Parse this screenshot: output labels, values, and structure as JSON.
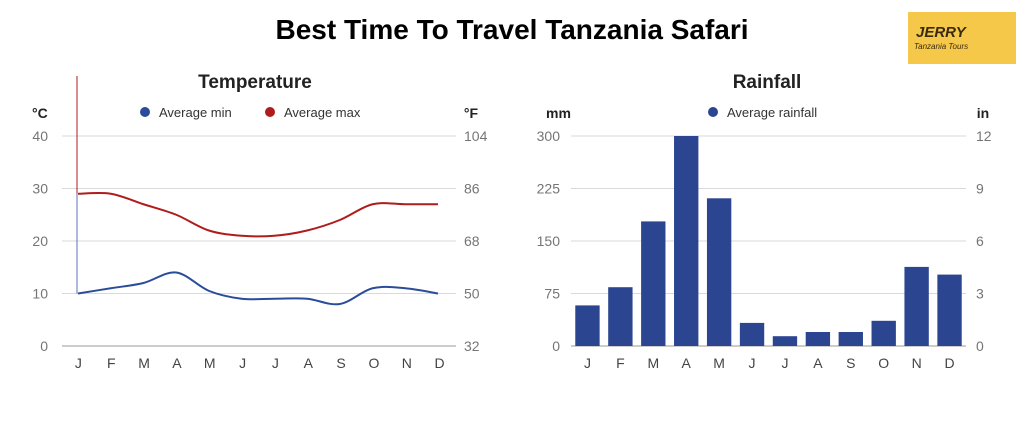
{
  "page_title": "Best Time To Travel Tanzania Safari",
  "logo": {
    "name": "JERRY",
    "subtitle": "Tanzania Tours",
    "color": "#f5c84a"
  },
  "chart_data": [
    {
      "type": "line",
      "title": "Temperature",
      "ylabel": "°C",
      "y2label": "°F",
      "categories": [
        "J",
        "F",
        "M",
        "A",
        "M",
        "J",
        "J",
        "A",
        "S",
        "O",
        "N",
        "D"
      ],
      "ylim": [
        0,
        40
      ],
      "yticks": [
        0,
        10,
        20,
        30,
        40
      ],
      "y2ticks": [
        32,
        50,
        68,
        86,
        104
      ],
      "grid": true,
      "legend": "top",
      "series": [
        {
          "name": "Average min",
          "color": "#2b4c9b",
          "values": [
            10,
            11,
            12,
            14,
            10.5,
            9,
            9,
            9,
            8,
            11,
            11,
            10
          ]
        },
        {
          "name": "Average max",
          "color": "#b01c1c",
          "values": [
            29,
            29,
            27,
            25,
            22,
            21,
            21,
            22,
            24,
            27,
            27,
            27
          ]
        }
      ]
    },
    {
      "type": "bar",
      "title": "Rainfall",
      "ylabel": "mm",
      "y2label": "in",
      "categories": [
        "J",
        "F",
        "M",
        "A",
        "M",
        "J",
        "J",
        "A",
        "S",
        "O",
        "N",
        "D"
      ],
      "ylim": [
        0,
        300
      ],
      "yticks": [
        0,
        75,
        150,
        225,
        300
      ],
      "y2ticks": [
        0,
        3,
        6,
        9,
        12
      ],
      "grid": true,
      "legend": "top",
      "series": [
        {
          "name": "Average rainfall",
          "color": "#2b4591",
          "values": [
            58,
            84,
            178,
            300,
            211,
            33,
            14,
            20,
            20,
            36,
            113,
            102
          ]
        }
      ]
    }
  ]
}
